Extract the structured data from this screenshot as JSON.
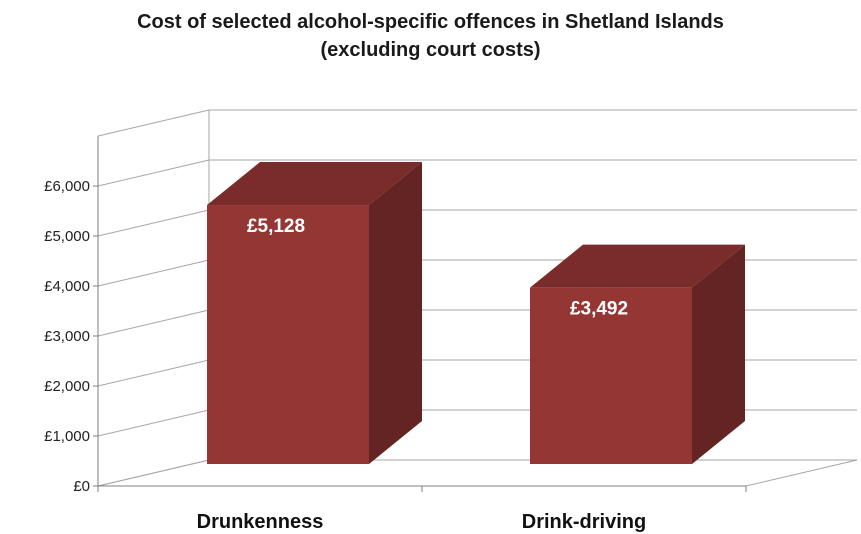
{
  "chart_data": {
    "type": "bar",
    "title": "Cost of selected alcohol-specific offences in Shetland Islands",
    "subtitle": "(excluding court costs)",
    "categories": [
      "Drunkenness",
      "Drink-driving"
    ],
    "values": [
      5128,
      3492
    ],
    "data_labels": [
      "£5,128",
      "£3,492"
    ],
    "y_ticks": [
      0,
      1000,
      2000,
      3000,
      4000,
      5000,
      6000
    ],
    "y_tick_labels": [
      "£0",
      "£1,000",
      "£2,000",
      "£3,000",
      "£4,000",
      "£5,000",
      "£6,000"
    ],
    "ylim": [
      0,
      7000
    ],
    "xlabel": "",
    "ylabel": "",
    "grid": true,
    "legend": "none",
    "style": "3d-column",
    "colors": {
      "front": "#943634",
      "side": "#632423",
      "top": "#7a2c2a"
    }
  }
}
